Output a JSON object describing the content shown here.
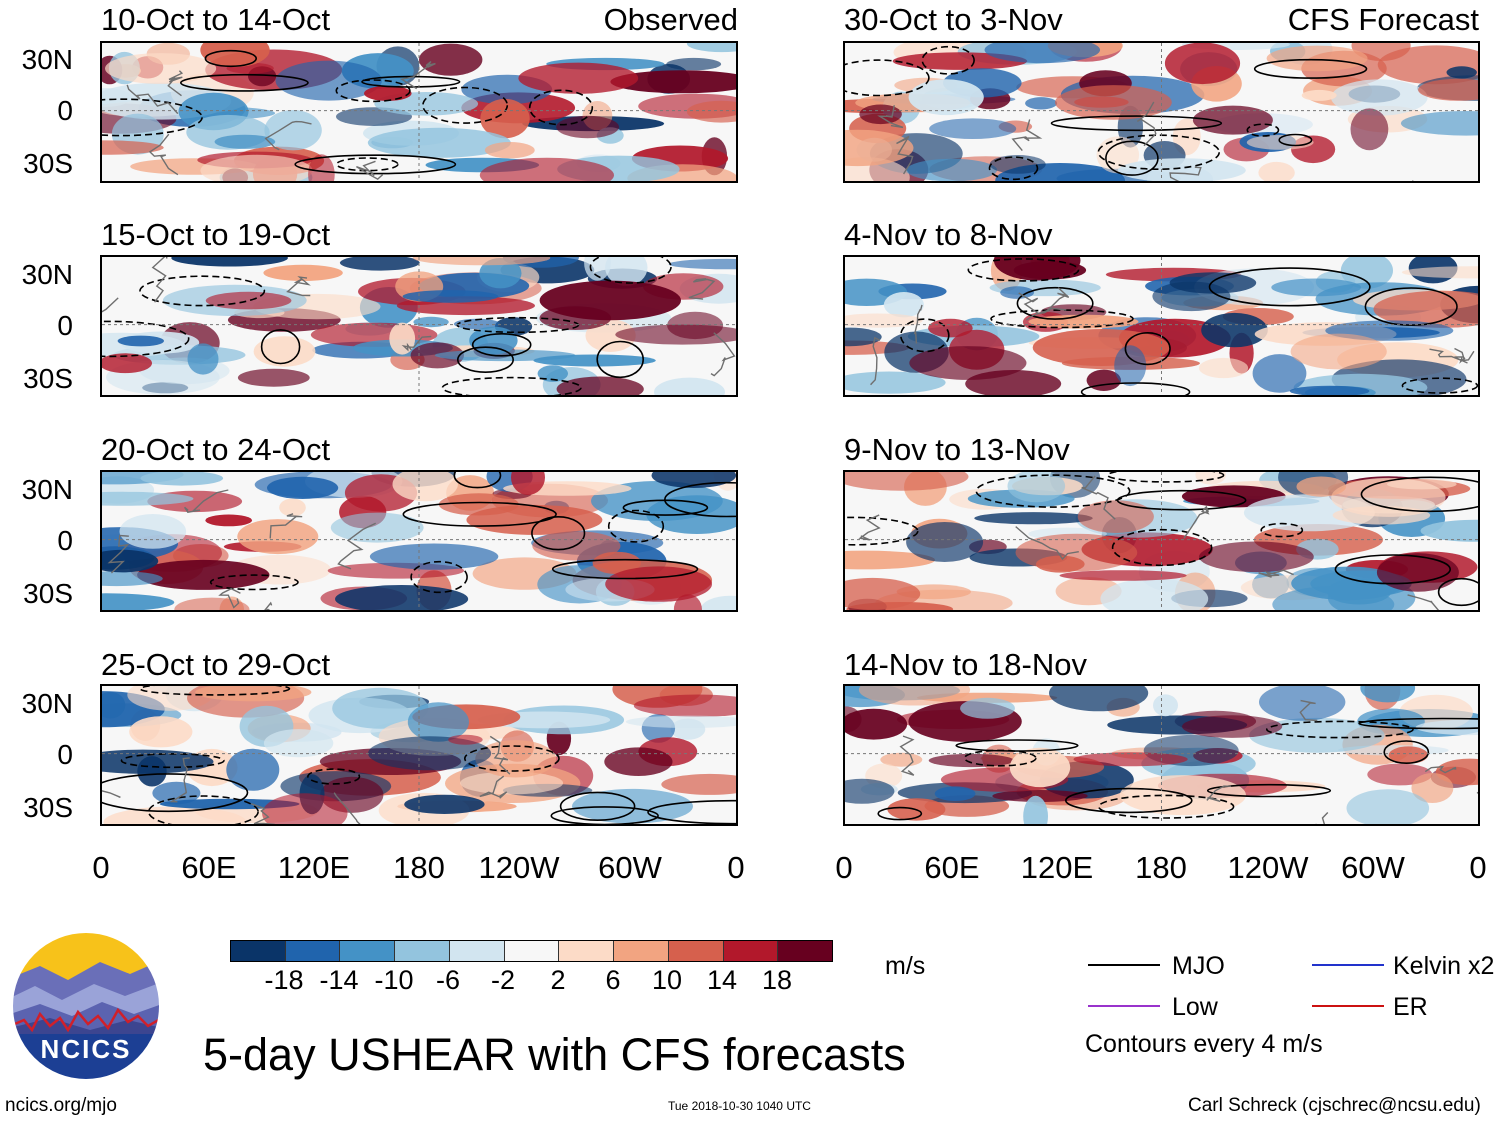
{
  "title": "5-day USHEAR with CFS forecasts",
  "observed_label": "Observed",
  "forecast_label": "CFS Forecast",
  "panels_left": [
    {
      "title": "10-Oct to 14-Oct"
    },
    {
      "title": "15-Oct to 19-Oct"
    },
    {
      "title": "20-Oct to 24-Oct"
    },
    {
      "title": "25-Oct to 29-Oct"
    }
  ],
  "panels_right": [
    {
      "title": "30-Oct to 3-Nov"
    },
    {
      "title": "4-Nov to 8-Nov"
    },
    {
      "title": "9-Nov to 13-Nov"
    },
    {
      "title": "14-Nov to 18-Nov"
    }
  ],
  "lat_labels": [
    "30N",
    "0",
    "30S"
  ],
  "lon_labels": [
    "0",
    "60E",
    "120E",
    "180",
    "120W",
    "60W",
    "0"
  ],
  "colorbar": {
    "ticks": [
      "-18",
      "-14",
      "-10",
      "-6",
      "-2",
      "2",
      "6",
      "10",
      "14",
      "18"
    ],
    "colors": [
      "#0a3468",
      "#2064ad",
      "#4492c6",
      "#93c4de",
      "#d2e5f0",
      "#f7f7f7",
      "#fcdbc7",
      "#f2a481",
      "#d6604d",
      "#b2182b",
      "#67001f"
    ],
    "units": "m/s"
  },
  "legend": {
    "items": [
      {
        "label": "MJO",
        "color": "#000000"
      },
      {
        "label": "Kelvin x2",
        "color": "#2233cc"
      },
      {
        "label": "Low",
        "color": "#9933cc"
      },
      {
        "label": "ER",
        "color": "#cc1111"
      }
    ],
    "note": "Contours every 4 m/s"
  },
  "logo": {
    "text": "NCICS"
  },
  "footer": {
    "left": "ncics.org/mjo",
    "center": "Tue 2018-10-30 1040 UTC",
    "right": "Carl Schreck (cjschrec@ncsu.edu)"
  }
}
